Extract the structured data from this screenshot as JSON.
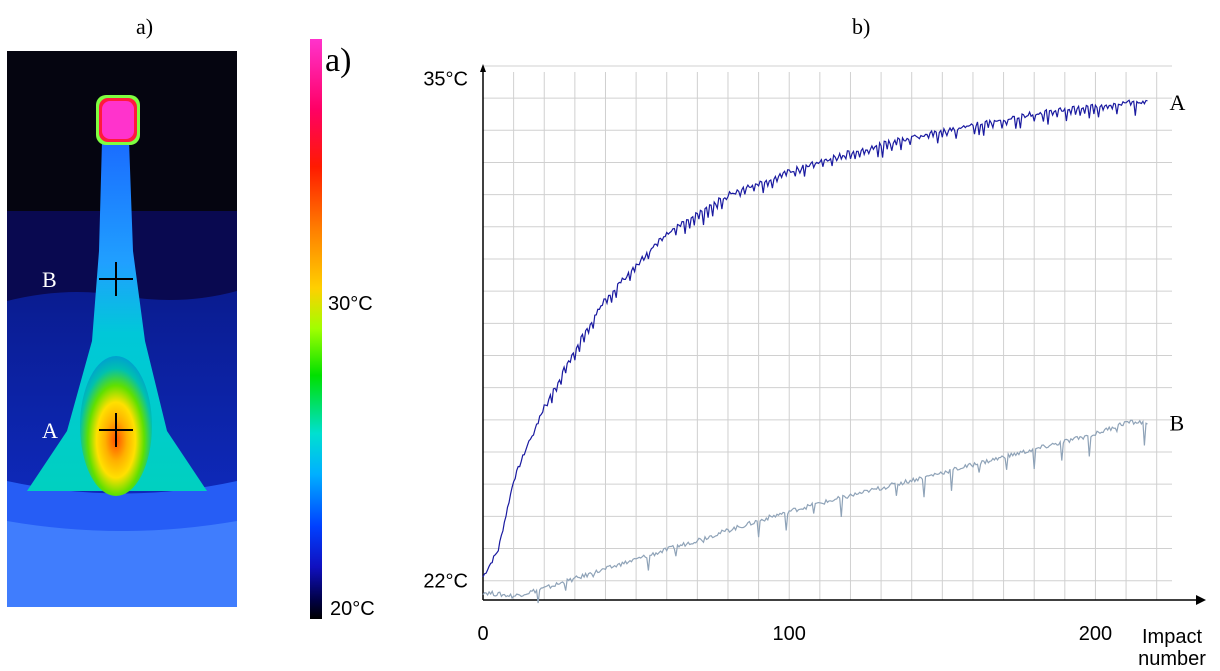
{
  "panels": {
    "a_label": "a)",
    "b_label": "b)"
  },
  "thermogram": {
    "point_a": "A",
    "point_b": "B",
    "colorbar": {
      "corner_label": "a)",
      "mid_label": "30°C",
      "min_label": "20°C",
      "colors": [
        "#ff33cc",
        "#ff0066",
        "#ff1a00",
        "#ff8000",
        "#ffd000",
        "#a0ff00",
        "#00e000",
        "#00e0d0",
        "#00b0ff",
        "#0040ff",
        "#1010c0",
        "#000040",
        "#000000"
      ]
    }
  },
  "chart_data": {
    "type": "line",
    "xlabel": "Impact\nnumber",
    "ylabel": "",
    "xlim": [
      0,
      225
    ],
    "ylim": [
      21.5,
      36
    ],
    "x_ticks": [
      0,
      100,
      200
    ],
    "x_tick_labels": [
      "0",
      "100",
      "200"
    ],
    "y_ticks": [
      22,
      35
    ],
    "y_tick_labels": [
      "22°C",
      "35°C"
    ],
    "grid": true,
    "series": [
      {
        "name": "A",
        "color": "#1a1aa0",
        "x": [
          0,
          5,
          10,
          15,
          20,
          30,
          40,
          50,
          60,
          70,
          80,
          90,
          100,
          120,
          140,
          160,
          180,
          200,
          210,
          217
        ],
        "y": [
          22.1,
          22.8,
          24.6,
          25.6,
          26.5,
          28.0,
          29.3,
          30.2,
          31.0,
          31.5,
          32.0,
          32.3,
          32.6,
          33.1,
          33.5,
          33.8,
          34.1,
          34.3,
          34.4,
          34.4
        ]
      },
      {
        "name": "B",
        "color": "#8fa3b8",
        "x": [
          0,
          10,
          20,
          40,
          60,
          80,
          100,
          120,
          140,
          160,
          180,
          200,
          210,
          217
        ],
        "y": [
          21.7,
          21.6,
          21.8,
          22.3,
          22.8,
          23.3,
          23.8,
          24.2,
          24.6,
          25.0,
          25.4,
          25.8,
          26.1,
          26.1
        ]
      }
    ]
  }
}
